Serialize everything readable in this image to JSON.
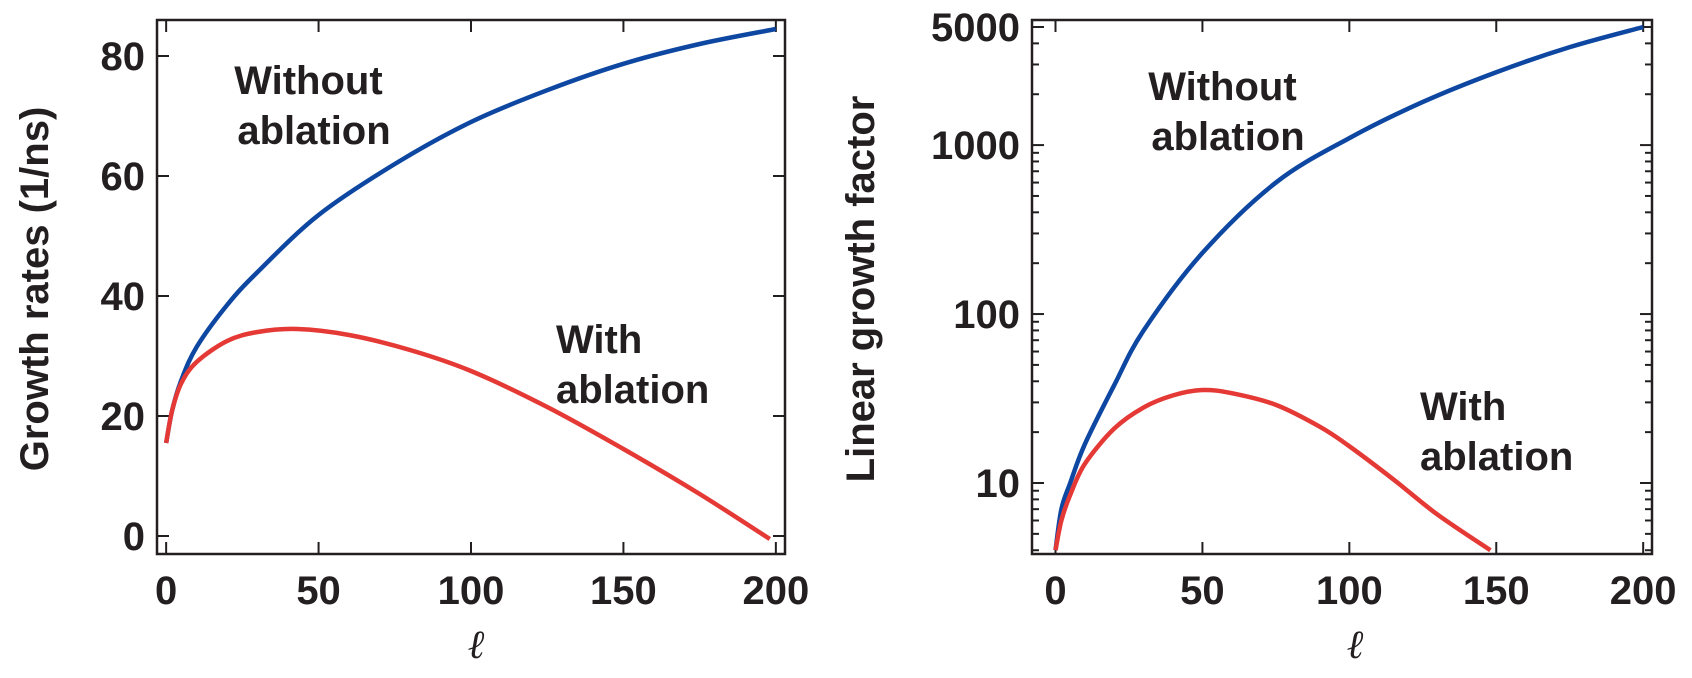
{
  "chart_data": [
    {
      "type": "line",
      "xlabel": "ℓ",
      "ylabel": "Growth rates (1/ns)",
      "xlim": [
        -3,
        203
      ],
      "ylim": [
        -3,
        86
      ],
      "yscale": "linear",
      "xticks": [
        0,
        50,
        100,
        150,
        200
      ],
      "xtick_labels": [
        "0",
        "50",
        "100",
        "150",
        "200"
      ],
      "yticks": [
        0,
        20,
        40,
        60,
        80
      ],
      "ytick_labels": [
        "0",
        "20",
        "40",
        "60",
        "80"
      ],
      "series": [
        {
          "label": "Without ablation",
          "color": "#0d47a1",
          "x": [
            0,
            2,
            5,
            10,
            20,
            30,
            50,
            75,
            100,
            125,
            150,
            175,
            200
          ],
          "y": [
            15.5,
            21,
            26,
            31.5,
            38.5,
            44,
            53.5,
            62,
            69,
            74.3,
            78.7,
            82,
            84.5
          ]
        },
        {
          "label": "With ablation",
          "color": "#e53935",
          "x": [
            0,
            2,
            5,
            10,
            20,
            30,
            43,
            60,
            80,
            100,
            125,
            150,
            175,
            198
          ],
          "y": [
            15.5,
            21,
            25.5,
            29,
            32.5,
            34,
            34.5,
            33.5,
            31,
            27.5,
            21.5,
            14.5,
            7,
            -0.5
          ]
        }
      ],
      "annotations": [
        {
          "lines": [
            "Without",
            "ablation"
          ]
        },
        {
          "lines": [
            "With",
            "ablation"
          ]
        }
      ],
      "grid": false,
      "legend": "none"
    },
    {
      "type": "line",
      "xlabel": "ℓ",
      "ylabel": "Linear growth factor",
      "xlim": [
        -8,
        203
      ],
      "ylim": [
        3.8,
        5500
      ],
      "yscale": "log",
      "xticks": [
        0,
        50,
        100,
        150,
        200
      ],
      "xtick_labels": [
        "0",
        "50",
        "100",
        "150",
        "200"
      ],
      "yticks": [
        10,
        100,
        1000,
        5000
      ],
      "ytick_labels": [
        "10",
        "100",
        "1000",
        "5000"
      ],
      "series": [
        {
          "label": "Without ablation",
          "color": "#0d47a1",
          "x": [
            0,
            2,
            5,
            10,
            20,
            30,
            50,
            75,
            100,
            125,
            150,
            175,
            200
          ],
          "y": [
            4,
            7,
            10,
            17,
            38,
            80,
            230,
            600,
            1100,
            1800,
            2700,
            3800,
            5000
          ]
        },
        {
          "label": "With ablation",
          "color": "#e53935",
          "x": [
            0,
            2,
            5,
            10,
            20,
            30,
            40,
            50,
            60,
            75,
            90,
            100,
            115,
            130,
            148
          ],
          "y": [
            4,
            6,
            8.5,
            13,
            21,
            28,
            33,
            35.5,
            34,
            29,
            21.5,
            16.5,
            10.5,
            6.5,
            4
          ]
        }
      ],
      "annotations": [
        {
          "lines": [
            "Without",
            "ablation"
          ]
        },
        {
          "lines": [
            "With",
            "ablation"
          ]
        }
      ],
      "grid": false,
      "legend": "none"
    }
  ]
}
